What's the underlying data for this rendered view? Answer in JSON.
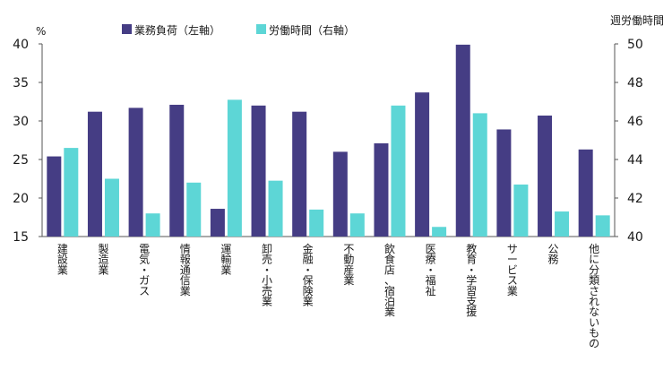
{
  "chart_data": {
    "type": "bar",
    "categories": [
      "建設業",
      "製造業",
      "電気・ガス",
      "情報通信業",
      "運輸業",
      "卸売・小売業",
      "金融・保険業",
      "不動産業",
      "飲食店、宿泊業",
      "医療・福祉",
      "教育・学習支援",
      "サービス業",
      "公務",
      "他に分類されないもの"
    ],
    "series": [
      {
        "name": "業務負荷（左軸）",
        "axis": "left",
        "color": "#453d84",
        "values": [
          25.4,
          31.2,
          31.7,
          32.1,
          18.6,
          32.0,
          31.2,
          26.0,
          27.1,
          33.7,
          39.9,
          28.9,
          30.7,
          26.3
        ]
      },
      {
        "name": "労働時間（右軸）",
        "axis": "right",
        "color": "#5dd6d6",
        "values": [
          44.6,
          43.0,
          41.2,
          42.8,
          47.1,
          42.9,
          41.4,
          41.2,
          46.8,
          40.5,
          46.4,
          42.7,
          41.3,
          41.1
        ]
      }
    ],
    "y_left": {
      "label": "%",
      "ylim": [
        15,
        40
      ],
      "ticks": [
        15,
        20,
        25,
        30,
        35,
        40
      ]
    },
    "y_right": {
      "label": "週労働時間",
      "ylim": [
        40,
        50
      ],
      "ticks": [
        40,
        42,
        44,
        46,
        48,
        50
      ]
    },
    "legend_position": "top-center",
    "grid": false
  }
}
